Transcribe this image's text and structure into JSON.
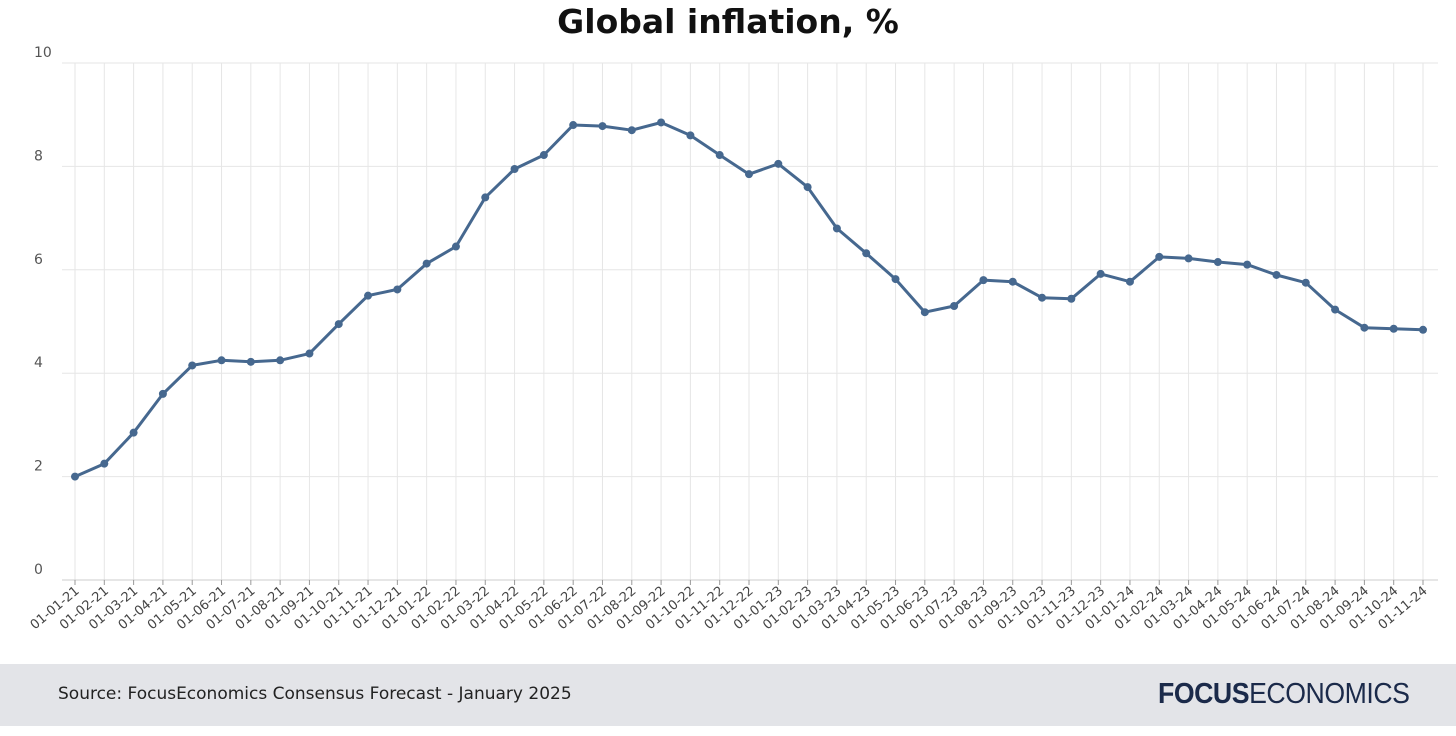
{
  "chart_data": {
    "type": "line",
    "title": "Global inflation, %",
    "xlabel": "",
    "ylabel": "",
    "ylim": [
      0,
      10
    ],
    "yticks": [
      "0",
      "2",
      "4",
      "6",
      "8",
      "10"
    ],
    "grid": true,
    "legend": "none",
    "line_color": "#46688f",
    "categories": [
      "01-01-21",
      "01-02-21",
      "01-03-21",
      "01-04-21",
      "01-05-21",
      "01-06-21",
      "01-07-21",
      "01-08-21",
      "01-09-21",
      "01-10-21",
      "01-11-21",
      "01-12-21",
      "01-01-22",
      "01-02-22",
      "01-03-22",
      "01-04-22",
      "01-05-22",
      "01-06-22",
      "01-07-22",
      "01-08-22",
      "01-09-22",
      "01-10-22",
      "01-11-22",
      "01-12-22",
      "01-01-23",
      "01-02-23",
      "01-03-23",
      "01-04-23",
      "01-05-23",
      "01-06-23",
      "01-07-23",
      "01-08-23",
      "01-09-23",
      "01-10-23",
      "01-11-23",
      "01-12-23",
      "01-01-24",
      "01-02-24",
      "01-03-24",
      "01-04-24",
      "01-05-24",
      "01-06-24",
      "01-07-24",
      "01-08-24",
      "01-09-24",
      "01-10-24",
      "01-11-24"
    ],
    "values": [
      2.0,
      2.25,
      2.85,
      3.6,
      4.15,
      4.25,
      4.22,
      4.25,
      4.38,
      4.95,
      5.5,
      5.62,
      6.12,
      6.45,
      7.4,
      7.95,
      8.22,
      8.8,
      8.78,
      8.7,
      8.85,
      8.6,
      8.22,
      7.85,
      8.05,
      7.6,
      6.8,
      6.32,
      5.82,
      5.18,
      5.3,
      5.8,
      5.77,
      5.46,
      5.44,
      5.92,
      5.77,
      6.25,
      6.22,
      6.15,
      6.1,
      5.9,
      5.75,
      5.23,
      4.88,
      4.86,
      4.84
    ]
  },
  "footer": {
    "source": "Source: FocusEconomics Consensus Forecast - January 2025",
    "brand_bold": "FOCUS",
    "brand_light": "ECONOMICS"
  }
}
